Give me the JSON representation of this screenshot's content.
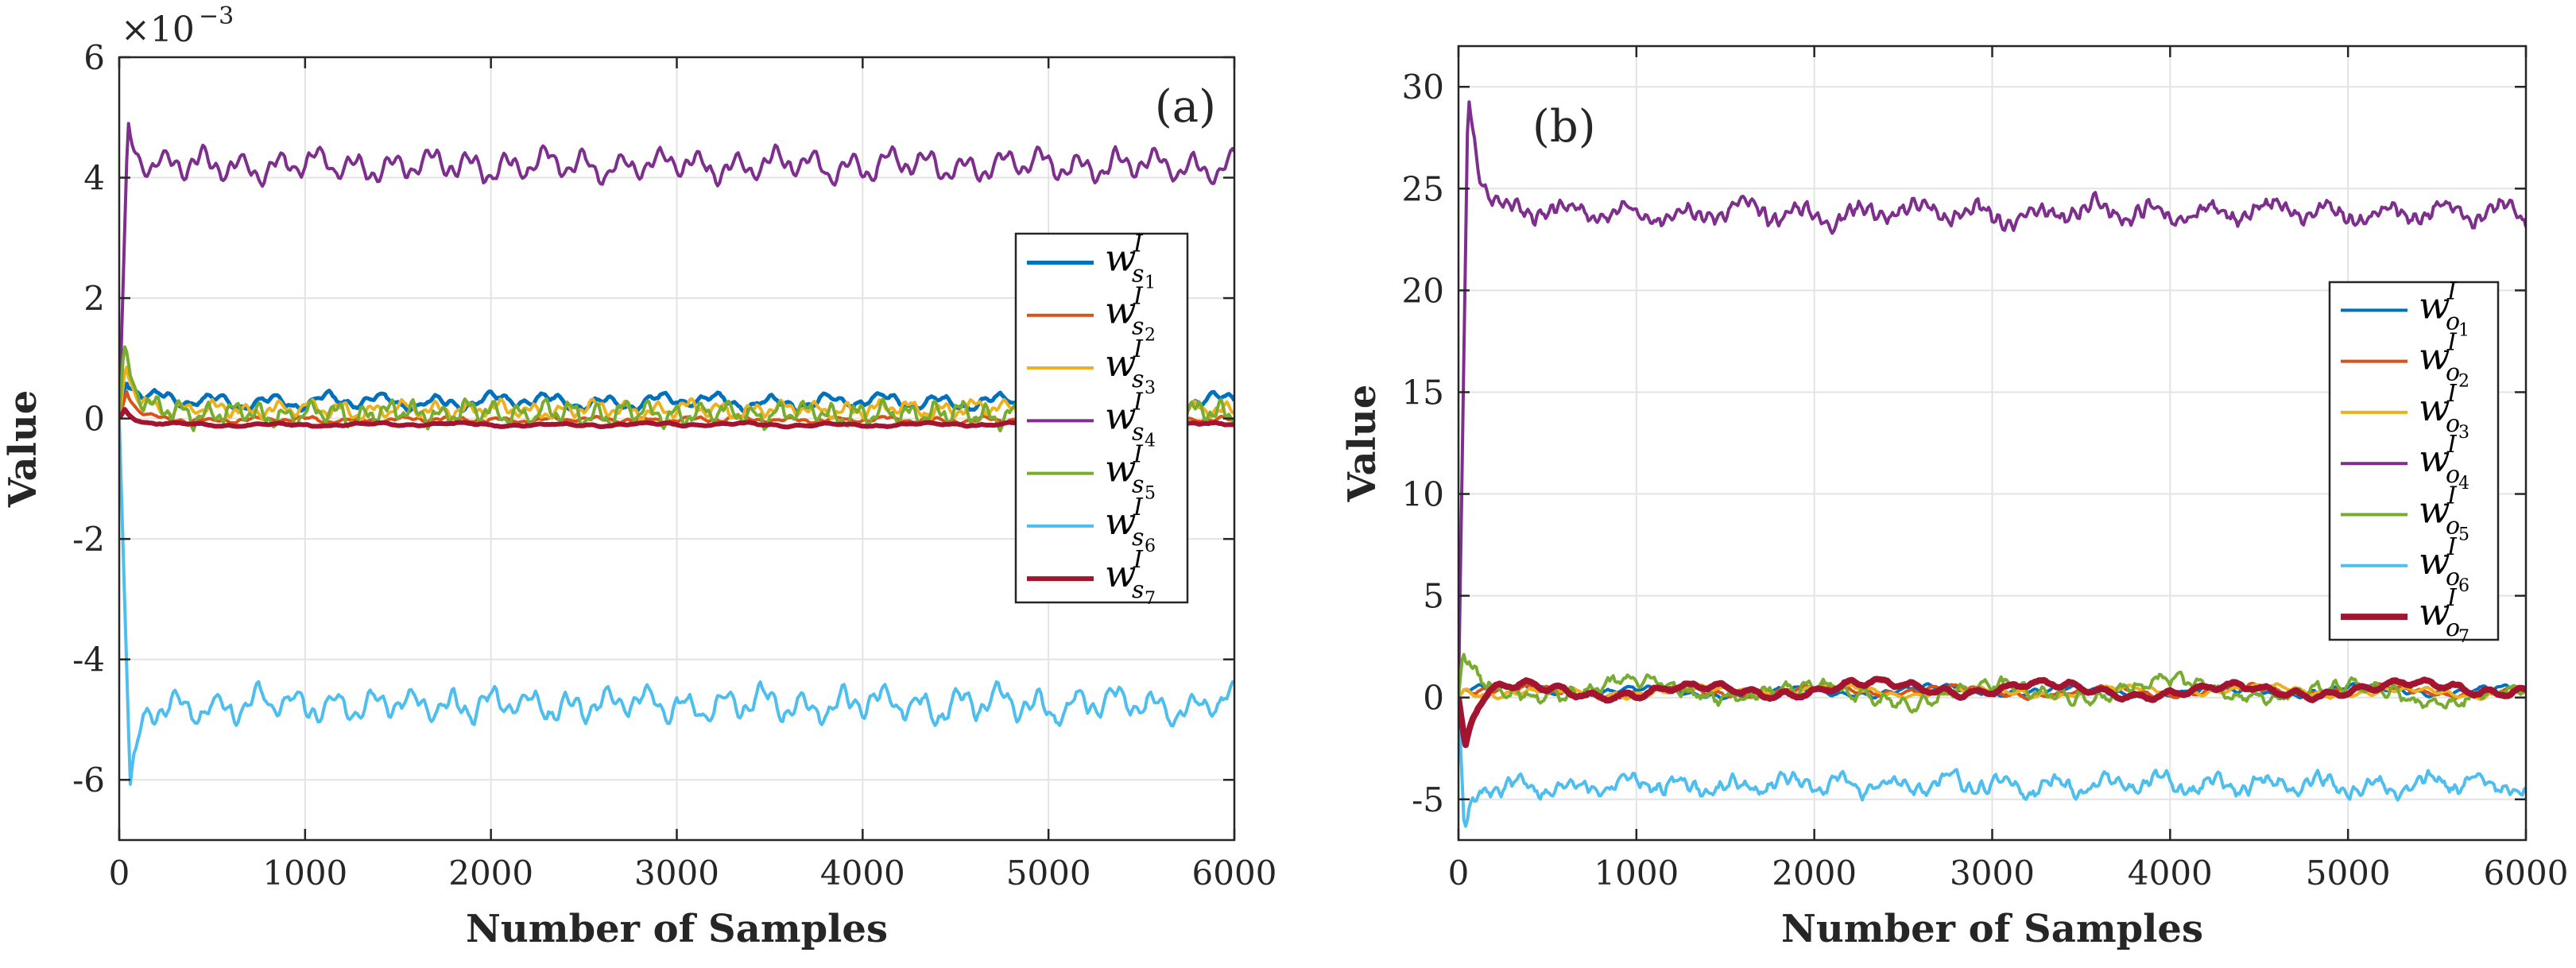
{
  "chart_data": [
    {
      "id": "a",
      "type": "line",
      "panel_label": "(a)",
      "xlabel": "Number of Samples",
      "ylabel": "Value",
      "xlim": [
        0,
        6000
      ],
      "ylim": [
        -7,
        6
      ],
      "xticks": [
        0,
        1000,
        2000,
        3000,
        4000,
        5000,
        6000
      ],
      "xtick_labels": [
        "0",
        "1000",
        "2000",
        "3000",
        "4000",
        "5000",
        "6000"
      ],
      "yticks": [
        -6,
        -4,
        -2,
        0,
        2,
        4,
        6
      ],
      "ytick_labels": [
        "-6",
        "-4",
        "-2",
        "0",
        "2",
        "4",
        "6"
      ],
      "exponent_label": "×10",
      "exponent_power": "−3",
      "grid": true,
      "legend_position": "right",
      "series": [
        {
          "name": "w",
          "sup": "I",
          "sub": "s",
          "subsub": "1",
          "color": "#0072BD",
          "width": 5,
          "start": 0,
          "peak": 0.7,
          "peak_x": 40,
          "mean": 0.28,
          "amp": 0.14,
          "noise": 0.05,
          "period": 300,
          "period2": 95,
          "seed": 1
        },
        {
          "name": "w",
          "sup": "I",
          "sub": "s",
          "subsub": "2",
          "color": "#D95319",
          "width": 4,
          "start": 0,
          "peak": 0.45,
          "peak_x": 40,
          "mean": -0.02,
          "amp": 0.05,
          "noise": 0.03,
          "period": 260,
          "period2": 80,
          "seed": 2
        },
        {
          "name": "w",
          "sup": "I",
          "sub": "s",
          "subsub": "3",
          "color": "#EDB120",
          "width": 4,
          "start": 0,
          "peak": 0.9,
          "peak_x": 35,
          "mean": 0.15,
          "amp": 0.14,
          "noise": 0.06,
          "period": 170,
          "period2": 60,
          "seed": 3
        },
        {
          "name": "w",
          "sup": "I",
          "sub": "s",
          "subsub": "4",
          "color": "#7E2F8E",
          "width": 4,
          "start": 0,
          "peak": 4.8,
          "peak_x": 45,
          "mean": 4.2,
          "amp": 0.27,
          "noise": 0.08,
          "period": 205,
          "period2": 70,
          "seed": 4
        },
        {
          "name": "w",
          "sup": "I",
          "sub": "s",
          "subsub": "5",
          "color": "#77AC30",
          "width": 4,
          "start": 0,
          "peak": 1.2,
          "peak_x": 25,
          "mean": 0.08,
          "amp": 0.2,
          "noise": 0.1,
          "period": 140,
          "period2": 55,
          "seed": 5
        },
        {
          "name": "w",
          "sup": "I",
          "sub": "s",
          "subsub": "6",
          "color": "#4DBEEE",
          "width": 4,
          "start": 0,
          "peak": -6.2,
          "peak_x": 60,
          "mean": -4.75,
          "amp": 0.28,
          "noise": 0.12,
          "period": 210,
          "period2": 75,
          "seed": 6
        },
        {
          "name": "w",
          "sup": "I",
          "sub": "s",
          "subsub": "7",
          "color": "#A2142F",
          "width": 6,
          "start": 0,
          "peak": 0.15,
          "peak_x": 30,
          "mean": -0.1,
          "amp": 0.03,
          "noise": 0.015,
          "period": 500,
          "period2": 140,
          "seed": 7
        }
      ]
    },
    {
      "id": "b",
      "type": "line",
      "panel_label": "(b)",
      "xlabel": "Number of Samples",
      "ylabel": "Value",
      "xlim": [
        0,
        6000
      ],
      "ylim": [
        -7,
        32
      ],
      "xticks": [
        0,
        1000,
        2000,
        3000,
        4000,
        5000,
        6000
      ],
      "xtick_labels": [
        "0",
        "1000",
        "2000",
        "3000",
        "4000",
        "5000",
        "6000"
      ],
      "yticks": [
        -5,
        0,
        5,
        10,
        15,
        20,
        25,
        30
      ],
      "ytick_labels": [
        "-5",
        "0",
        "5",
        "10",
        "15",
        "20",
        "25",
        "30"
      ],
      "grid": true,
      "legend_position": "right",
      "series": [
        {
          "name": "w",
          "sup": "I",
          "sub": "o",
          "subsub": "1",
          "color": "#0072BD",
          "width": 4,
          "start": 0,
          "peak": 0.5,
          "peak_x": 40,
          "mean": 0.3,
          "amp": 0.3,
          "noise": 0.1,
          "period": 800,
          "period2": 120,
          "seed": 11
        },
        {
          "name": "w",
          "sup": "I",
          "sub": "o",
          "subsub": "2",
          "color": "#D95319",
          "width": 4,
          "start": 0,
          "peak": 0.5,
          "peak_x": 40,
          "mean": 0.3,
          "amp": 0.3,
          "noise": 0.1,
          "period": 800,
          "period2": 120,
          "seed": 12
        },
        {
          "name": "w",
          "sup": "I",
          "sub": "o",
          "subsub": "3",
          "color": "#EDB120",
          "width": 4,
          "start": 0,
          "peak": 0.5,
          "peak_x": 40,
          "mean": 0.3,
          "amp": 0.3,
          "noise": 0.1,
          "period": 800,
          "period2": 120,
          "seed": 13
        },
        {
          "name": "w",
          "sup": "I",
          "sub": "o",
          "subsub": "4",
          "color": "#7E2F8E",
          "width": 4,
          "start": 0,
          "peak": 30.5,
          "peak_x": 55,
          "mean": 23.8,
          "amp": 0.6,
          "noise": 0.45,
          "period": 330,
          "period2": 60,
          "seed": 14
        },
        {
          "name": "w",
          "sup": "I",
          "sub": "o",
          "subsub": "5",
          "color": "#77AC30",
          "width": 4,
          "start": 0,
          "peak": 2.3,
          "peak_x": 25,
          "mean": 0.3,
          "amp": 0.6,
          "noise": 0.45,
          "period": 1000,
          "period2": 110,
          "seed": 15
        },
        {
          "name": "w",
          "sup": "I",
          "sub": "o",
          "subsub": "6",
          "color": "#4DBEEE",
          "width": 4,
          "start": 0,
          "peak": -7,
          "peak_x": 35,
          "mean": -4.3,
          "amp": 0.5,
          "noise": 0.45,
          "period": 300,
          "period2": 70,
          "seed": 16
        },
        {
          "name": "w",
          "sup": "I",
          "sub": "o",
          "subsub": "7",
          "color": "#A2142F",
          "width": 8,
          "start": 0,
          "peak": -2.5,
          "peak_x": 40,
          "mean": 0.4,
          "amp": 0.45,
          "noise": 0.1,
          "period": 1000,
          "period2": 180,
          "seed": 17
        }
      ]
    }
  ]
}
